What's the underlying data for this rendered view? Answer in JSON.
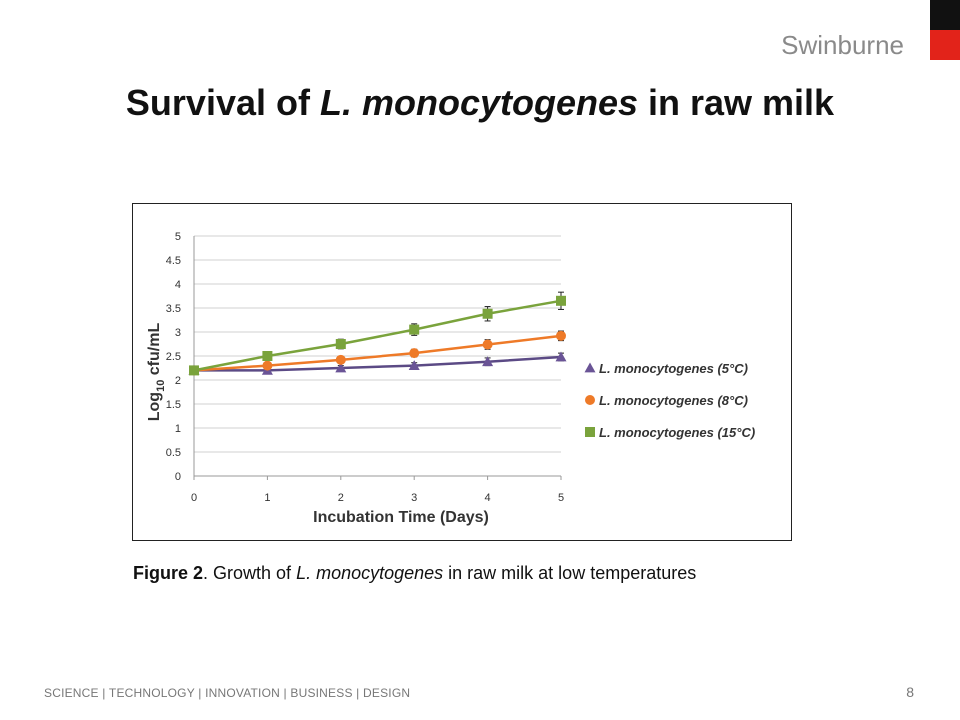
{
  "header": {
    "brand": "Swinburne",
    "title_before": "Survival of ",
    "title_italic": "L. monocytogenes",
    "title_after": " in raw milk"
  },
  "caption": {
    "label": "Figure 2",
    "text_before": ".  Growth of ",
    "italic": "L. monocytogenes",
    "text_after": " in raw milk at low temperatures"
  },
  "footer": {
    "text": "SCIENCE  |  TECHNOLOGY   |  INNOVATION   |  BUSINESS  |  DESIGN",
    "page_number": "8"
  },
  "colors": {
    "accent_red": "#e2231a",
    "accent_black": "#111111"
  },
  "chart_data": {
    "type": "line",
    "xlabel": "Incubation Time (Days)",
    "ylabel_prefix": "Log",
    "ylabel_subscript": "10",
    "ylabel_suffix": " cfu/mL",
    "x": [
      0,
      1,
      2,
      3,
      4,
      5
    ],
    "x_ticks": [
      "0",
      "1",
      "2",
      "3",
      "4",
      "5"
    ],
    "ylim": [
      0,
      5
    ],
    "y_ticks": [
      "0",
      "0.5",
      "1",
      "1.5",
      "2",
      "2.5",
      "3",
      "3.5",
      "4",
      "4.5",
      "5"
    ],
    "grid": true,
    "legend_position": "right",
    "series": [
      {
        "name": "L. monocytogenes (5°C)",
        "marker": "triangle",
        "color": "#6a5496",
        "line_color": "#5b4a85",
        "values": [
          2.2,
          2.2,
          2.25,
          2.3,
          2.38,
          2.48
        ],
        "errors": [
          0.03,
          0.04,
          0.05,
          0.06,
          0.08,
          0.08
        ]
      },
      {
        "name": "L. monocytogenes (8°C)",
        "marker": "circle",
        "color": "#ee7a28",
        "line_color": "#ee7a28",
        "values": [
          2.2,
          2.3,
          2.42,
          2.56,
          2.74,
          2.92
        ],
        "errors": [
          0.03,
          0.05,
          0.07,
          0.08,
          0.1,
          0.1
        ]
      },
      {
        "name": "L. monocytogenes (15°C)",
        "marker": "square",
        "color": "#7aa33c",
        "line_color": "#7aa33c",
        "values": [
          2.2,
          2.5,
          2.75,
          3.05,
          3.38,
          3.65
        ],
        "errors": [
          0.03,
          0.08,
          0.1,
          0.12,
          0.15,
          0.18
        ]
      }
    ]
  }
}
